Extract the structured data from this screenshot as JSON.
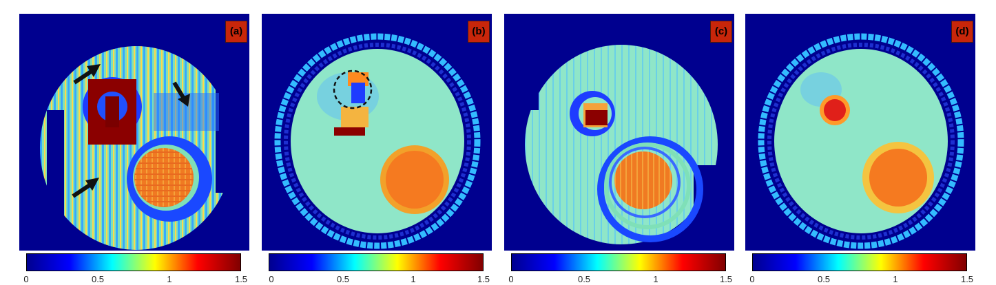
{
  "panels": [
    {
      "label": "(a)"
    },
    {
      "label": "(b)"
    },
    {
      "label": "(c)"
    },
    {
      "label": "(d)"
    }
  ],
  "colorbar": {
    "ticks": [
      "0",
      "0.5",
      "1",
      "1.5"
    ],
    "range": [
      0,
      1.5
    ],
    "colormap": "jet",
    "colors": [
      "#00008f",
      "#0000ff",
      "#00ffff",
      "#ffff00",
      "#ff0000",
      "#800000"
    ]
  },
  "colors": {
    "background": "#00008f",
    "tissue": "#7ee0c0",
    "ring": "#33bbff",
    "tumor": "#f57a20",
    "hotspot": "#8b0000"
  },
  "annotations": {
    "arrows_in_panel": "(a)",
    "dashed_circle_in_panel": "(b)"
  }
}
